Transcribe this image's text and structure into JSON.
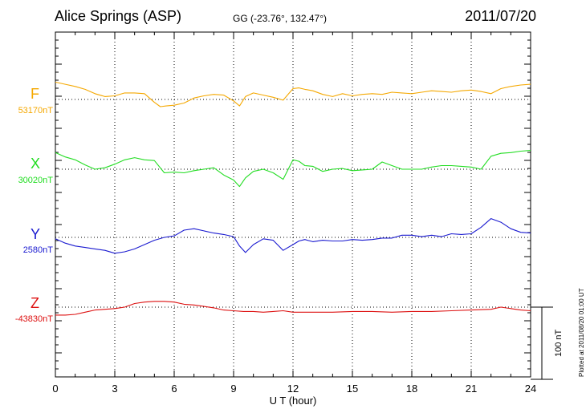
{
  "header": {
    "station": "Alice Springs (ASP)",
    "coords": "GG (-23.76°, 132.47°)",
    "date": "2011/07/20"
  },
  "footer": {
    "plotted": "Plotted at 2011/08/20 01:00 UT",
    "scale_label": "100 nT"
  },
  "chart_data": {
    "type": "line",
    "title": "Alice Springs (ASP)",
    "xlabel": "U T (hour)",
    "xlim": [
      0,
      24
    ],
    "x_ticks": [
      0,
      3,
      6,
      9,
      12,
      15,
      18,
      21,
      24
    ],
    "x_tick_labels": [
      "0",
      "3",
      "6",
      "9",
      "12",
      "15",
      "18",
      "21",
      "24"
    ],
    "grid": true,
    "scale_bar_nT": 100,
    "series": [
      {
        "name": "F",
        "baseline_label": "53170nT",
        "baseline_nT": 53170,
        "color": "#f5a800",
        "x": [
          0,
          0.5,
          1,
          1.5,
          2,
          2.5,
          3,
          3.5,
          4,
          4.5,
          5,
          5.3,
          5.6,
          6,
          6.5,
          7,
          7.5,
          8,
          8.5,
          9,
          9.3,
          9.6,
          10,
          10.5,
          11,
          11.5,
          12,
          12.3,
          12.6,
          13,
          13.5,
          14,
          14.5,
          15,
          15.5,
          16,
          16.5,
          17,
          17.5,
          18,
          18.5,
          19,
          19.5,
          20,
          20.5,
          21,
          21.5,
          22,
          22.5,
          23,
          23.5,
          24
        ],
        "values": [
          24,
          21,
          18,
          14,
          8,
          4,
          5,
          9,
          9,
          8,
          -4,
          -10,
          -9,
          -8,
          -5,
          2,
          5,
          7,
          6,
          -2,
          -9,
          4,
          9,
          6,
          3,
          -1,
          15,
          16,
          14,
          12,
          7,
          4,
          8,
          5,
          7,
          8,
          7,
          10,
          9,
          8,
          10,
          12,
          11,
          10,
          12,
          13,
          11,
          8,
          15,
          18,
          20,
          21
        ]
      },
      {
        "name": "X",
        "baseline_label": "30020nT",
        "baseline_nT": 30020,
        "color": "#22dd22",
        "x": [
          0,
          0.5,
          1,
          1.5,
          2,
          2.5,
          3,
          3.5,
          4,
          4.5,
          5,
          5.5,
          6,
          6.5,
          7,
          7.5,
          8,
          8.5,
          9,
          9.3,
          9.6,
          10,
          10.5,
          11,
          11.5,
          12,
          12.3,
          12.6,
          13,
          13.5,
          14,
          14.5,
          15,
          15.5,
          16,
          16.5,
          17,
          17.5,
          18,
          18.5,
          19,
          19.5,
          20,
          20.5,
          21,
          21.5,
          22,
          22.5,
          23,
          23.5,
          24
        ],
        "values": [
          23,
          17,
          13,
          6,
          0,
          2,
          7,
          13,
          16,
          13,
          12,
          -5,
          -4,
          -5,
          -2,
          0,
          2,
          -8,
          -15,
          -24,
          -12,
          -3,
          0,
          -5,
          -14,
          13,
          11,
          5,
          4,
          -3,
          0,
          1,
          -2,
          -1,
          0,
          10,
          5,
          0,
          0,
          0,
          3,
          5,
          5,
          4,
          3,
          0,
          18,
          22,
          23,
          25,
          26
        ]
      },
      {
        "name": "Y",
        "baseline_label": "2580nT",
        "baseline_nT": 2580,
        "color": "#1a1ad0",
        "x": [
          0,
          0.5,
          1,
          1.5,
          2,
          2.5,
          3,
          3.5,
          4,
          4.5,
          5,
          5.5,
          6,
          6.5,
          7,
          7.5,
          8,
          8.5,
          9,
          9.3,
          9.6,
          10,
          10.5,
          11,
          11.5,
          12,
          12.3,
          12.6,
          13,
          13.5,
          14,
          14.5,
          15,
          15.5,
          16,
          16.5,
          17,
          17.5,
          18,
          18.5,
          19,
          19.5,
          20,
          20.5,
          21,
          21.5,
          22,
          22.5,
          23,
          23.5,
          24
        ],
        "values": [
          -2,
          -8,
          -12,
          -14,
          -16,
          -18,
          -22,
          -20,
          -16,
          -10,
          -4,
          0,
          2,
          10,
          12,
          9,
          6,
          4,
          1,
          -12,
          -21,
          -10,
          -2,
          -4,
          -18,
          -10,
          -5,
          -3,
          -6,
          -4,
          -5,
          -5,
          -3,
          -4,
          -3,
          -1,
          -1,
          3,
          3,
          1,
          3,
          1,
          5,
          4,
          5,
          14,
          26,
          21,
          12,
          7,
          6
        ]
      },
      {
        "name": "Z",
        "baseline_label": "-43830nT",
        "baseline_nT": -43830,
        "color": "#dd1111",
        "x": [
          0,
          0.5,
          1,
          1.5,
          2,
          2.5,
          3,
          3.5,
          4,
          4.5,
          5,
          5.5,
          6,
          6.5,
          7,
          7.5,
          8,
          8.5,
          9,
          9.5,
          10,
          10.5,
          11,
          11.5,
          12,
          13,
          14,
          15,
          16,
          17,
          18,
          19,
          20,
          21,
          22,
          22.5,
          23,
          23.5,
          24
        ],
        "values": [
          -11,
          -11,
          -10,
          -7,
          -4,
          -3,
          -2,
          0,
          5,
          7,
          8,
          8,
          7,
          4,
          3,
          1,
          -1,
          -4,
          -5,
          -6,
          -6,
          -7,
          -6,
          -5,
          -7,
          -7,
          -7,
          -6,
          -6,
          -7,
          -6,
          -6,
          -5,
          -4,
          -3,
          0,
          -2,
          -4,
          -5
        ]
      }
    ]
  }
}
